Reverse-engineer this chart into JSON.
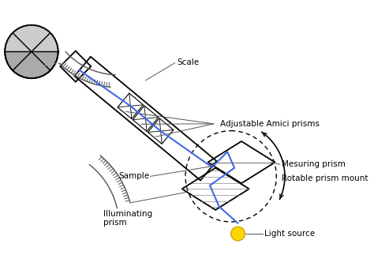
{
  "bg_color": "#ffffff",
  "blue_line_color": "#4169e1",
  "light_source_color": "#ffd700",
  "labels": {
    "scale": "Scale",
    "amici": "Adjustable Amici prisms",
    "measuring": "Mesuring prism",
    "rotable": "Rotable prism mount",
    "sample": "Sample",
    "illuminating": "Illuminating\nprism",
    "light": "Light source"
  },
  "label_fontsize": 7.5,
  "figsize": [
    4.74,
    3.42
  ],
  "dpi": 100
}
